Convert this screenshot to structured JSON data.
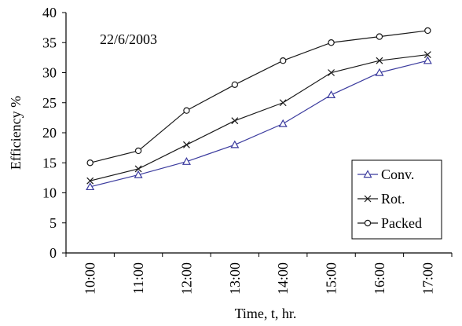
{
  "chart_data": {
    "type": "line",
    "title": "",
    "annotation": "22/6/2003",
    "xlabel": "Time, t, hr.",
    "ylabel": "Efficiency %",
    "categories": [
      "10:00",
      "11:00",
      "12:00",
      "13:00",
      "14:00",
      "15:00",
      "16:00",
      "17:00"
    ],
    "ylim": [
      0,
      40
    ],
    "yticks": [
      0,
      5,
      10,
      15,
      20,
      25,
      30,
      35,
      40
    ],
    "grid": false,
    "legend_position": "bottom-right",
    "series": [
      {
        "name": "Conv.",
        "marker": "triangle",
        "color": "#3b3b9e",
        "values": [
          11,
          13,
          15.2,
          18,
          21.5,
          26.3,
          30,
          32
        ]
      },
      {
        "name": "Rot.",
        "marker": "x",
        "color": "#1a1a1a",
        "values": [
          12,
          14,
          18,
          22,
          25,
          30,
          32,
          33
        ]
      },
      {
        "name": "Packed",
        "marker": "circle",
        "color": "#1a1a1a",
        "values": [
          15,
          17,
          23.7,
          28,
          32,
          35,
          36,
          37
        ]
      }
    ]
  }
}
